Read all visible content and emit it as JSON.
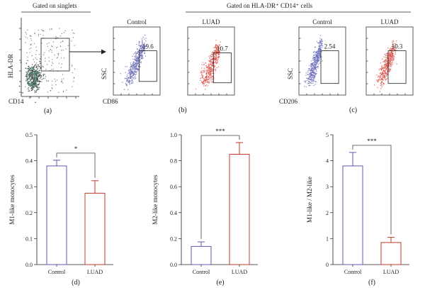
{
  "header": {
    "singlets_label": "Gated on singlets",
    "gated_label": "Gated on HLA-DR⁺ CD14⁺ cells"
  },
  "flow": {
    "panel_a": {
      "ylabel": "HLA-DR",
      "xlabel": "CD14",
      "letter": "(a)"
    },
    "panel_b": {
      "ylabel": "SSC",
      "xlabel": "CD86",
      "letter": "(b)",
      "plots": [
        {
          "title": "Control",
          "value": "19.6",
          "color": "#6a6ab8"
        },
        {
          "title": "LUAD",
          "value": "10.7",
          "color": "#d9524a"
        }
      ]
    },
    "panel_c": {
      "ylabel": "SSC",
      "xlabel": "CD206",
      "letter": "(c)",
      "plots": [
        {
          "title": "Control",
          "value": "2.54",
          "color": "#6a6ab8"
        },
        {
          "title": "LUAD",
          "value": "10.3",
          "color": "#d9524a"
        }
      ]
    }
  },
  "colors": {
    "control": "#5b5bb0",
    "luad": "#c0392b",
    "axis": "#222222"
  },
  "chart_data": [
    {
      "type": "bar",
      "letter": "(d)",
      "ylabel": "M1-like monocytes",
      "categories": [
        "Control",
        "LUAD"
      ],
      "values": [
        0.38,
        0.275
      ],
      "errors": [
        0.022,
        0.048
      ],
      "ylim": [
        0,
        0.5
      ],
      "yticks": [
        "0.0",
        "0.1",
        "0.2",
        "0.3",
        "0.4",
        "0.5"
      ],
      "significance": "*"
    },
    {
      "type": "bar",
      "letter": "(e)",
      "ylabel": "M2-like monocytes",
      "categories": [
        "Control",
        "LUAD"
      ],
      "values": [
        0.14,
        0.85
      ],
      "errors": [
        0.035,
        0.09
      ],
      "ylim": [
        0,
        1.0
      ],
      "yticks": [
        "0.0",
        "0.2",
        "0.4",
        "0.6",
        "0.8",
        "1.0"
      ],
      "significance": "***"
    },
    {
      "type": "bar",
      "letter": "(f)",
      "ylabel": "M1-like / M2-like",
      "categories": [
        "Control",
        "LUAD"
      ],
      "values": [
        3.8,
        0.85
      ],
      "errors": [
        0.52,
        0.2
      ],
      "ylim": [
        0,
        5
      ],
      "yticks": [
        "0",
        "1",
        "2",
        "3",
        "4",
        "5"
      ],
      "significance": "***"
    }
  ]
}
